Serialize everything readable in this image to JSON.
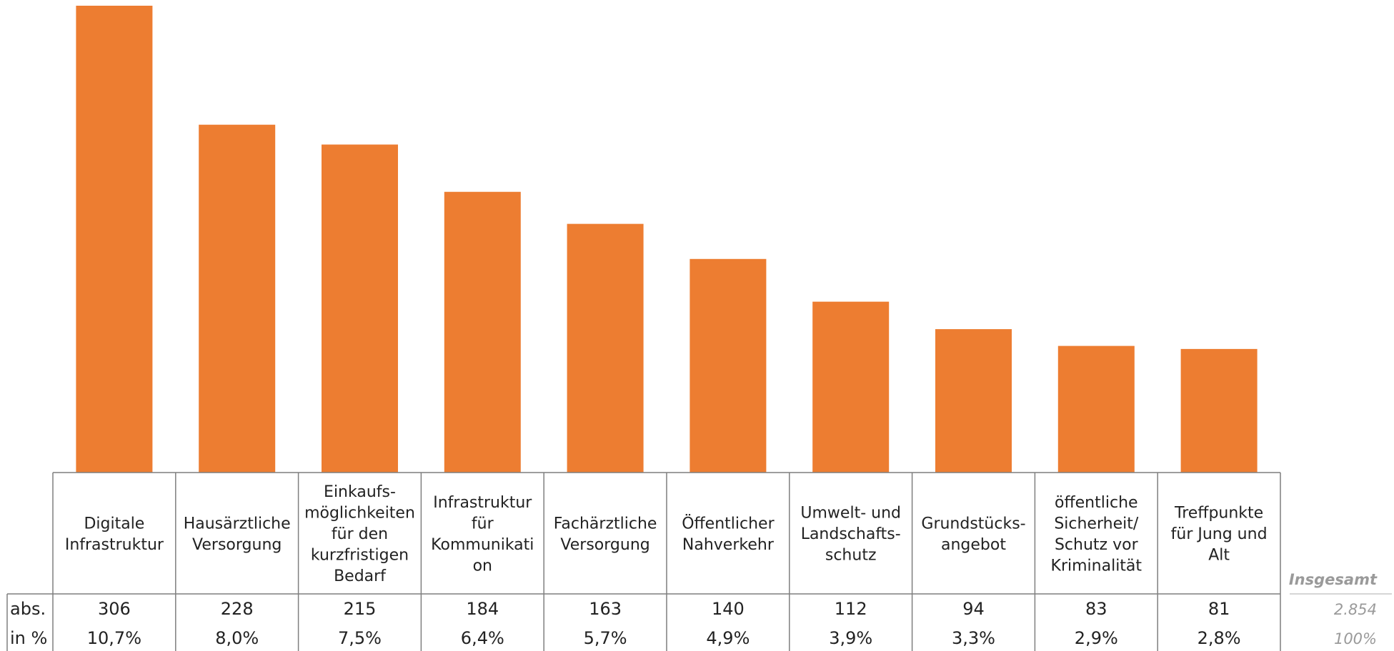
{
  "chart_data": {
    "type": "bar",
    "categories": [
      [
        "Digitale",
        "Infrastruktur"
      ],
      [
        "Hausärztliche",
        "Versorgung"
      ],
      [
        "Einkaufs-",
        "möglichkeiten",
        "für den",
        "kurzfristigen",
        "Bedarf"
      ],
      [
        "Infrastruktur",
        "für",
        "Kommunikati",
        "on"
      ],
      [
        "Fachärztliche",
        "Versorgung"
      ],
      [
        "Öffentlicher",
        "Nahverkehr"
      ],
      [
        "Umwelt- und",
        "Landschafts-",
        "schutz"
      ],
      [
        "Grundstücks-",
        "angebot"
      ],
      [
        "öffentliche",
        "Sicherheit/",
        "Schutz vor",
        "Kriminalität"
      ],
      [
        "Treffpunkte",
        "für Jung und",
        "Alt"
      ]
    ],
    "values": [
      306,
      228,
      215,
      184,
      163,
      140,
      112,
      94,
      83,
      81
    ],
    "abs_labels": [
      "306",
      "228",
      "215",
      "184",
      "163",
      "140",
      "112",
      "94",
      "83",
      "81"
    ],
    "pct_labels": [
      "10,7%",
      "8,0%",
      "7,5%",
      "6,4%",
      "5,7%",
      "4,9%",
      "3,9%",
      "3,3%",
      "2,9%",
      "2,8%"
    ],
    "row_labels": {
      "abs": "abs.",
      "pct": "in %"
    },
    "total": {
      "label": "Insgesamt",
      "abs": "2.854",
      "pct": "100%"
    },
    "ylim": [
      0,
      306
    ],
    "bar_color": "#ED7D31",
    "grid": false,
    "legend": "none"
  }
}
